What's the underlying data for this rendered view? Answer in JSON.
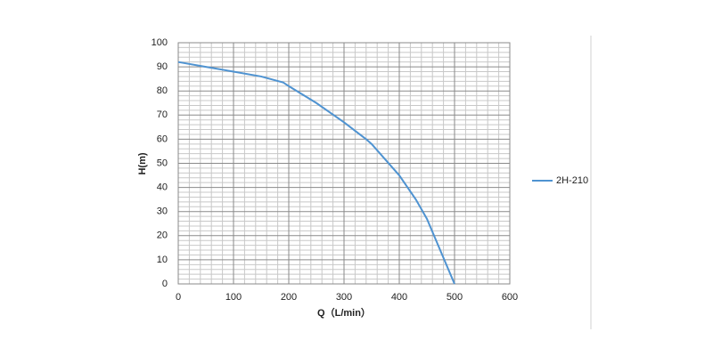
{
  "chart_data": {
    "type": "line",
    "x_label": "Q（L/min）",
    "y_label": "H(m)",
    "x": [
      0,
      50,
      100,
      150,
      190,
      200,
      250,
      300,
      340,
      350,
      400,
      430,
      450,
      500
    ],
    "series": [
      {
        "name": "2H-210",
        "color": "#4f93d1",
        "values": [
          92,
          90,
          88,
          86,
          83.5,
          82,
          75,
          67,
          60,
          58,
          45,
          35,
          27,
          0
        ]
      }
    ],
    "xlim": [
      0,
      600
    ],
    "xticks": [
      0,
      100,
      200,
      300,
      400,
      500,
      600
    ],
    "ylim": [
      0,
      100
    ],
    "yticks": [
      0,
      10,
      20,
      30,
      40,
      50,
      60,
      70,
      80,
      90,
      100
    ],
    "grid": true,
    "legend": "right"
  }
}
